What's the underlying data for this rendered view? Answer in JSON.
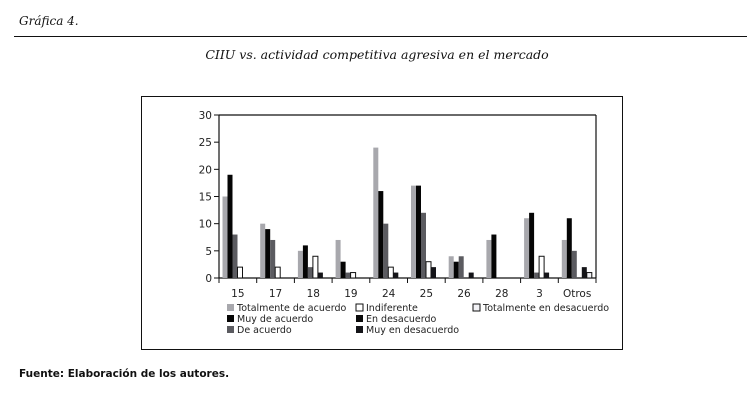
{
  "figure_label": "Gráfica 4.",
  "source": "Fuente: Elaboración de los autores.",
  "chart_data": {
    "type": "bar",
    "title": "CIIU vs. actividad competitiva agresiva en el mercado",
    "xlabel": "",
    "ylabel": "",
    "ylim": [
      0,
      30
    ],
    "yticks": [
      0,
      5,
      10,
      15,
      20,
      25,
      30
    ],
    "grid": false,
    "legend_position": "bottom",
    "categories": [
      "15",
      "17",
      "18",
      "19",
      "24",
      "25",
      "26",
      "28",
      "3",
      "Otros"
    ],
    "series": [
      {
        "name": "Totalmente de acuerdo",
        "color": "#a8a8ad",
        "values": [
          15,
          10,
          5,
          7,
          24,
          17,
          4,
          7,
          11,
          7
        ]
      },
      {
        "name": "Muy de acuerdo",
        "color": "#050505",
        "values": [
          19,
          9,
          6,
          3,
          16,
          17,
          3,
          8,
          12,
          11
        ]
      },
      {
        "name": "De acuerdo",
        "color": "#5b5b60",
        "values": [
          8,
          7,
          2,
          1,
          10,
          12,
          4,
          0,
          1,
          5
        ]
      },
      {
        "name": "Indiferente",
        "color": "#ffffff",
        "values": [
          2,
          2,
          4,
          1,
          2,
          3,
          0,
          0,
          4,
          0
        ]
      },
      {
        "name": "En desacuerdo",
        "color": "#0a0a0a",
        "values": [
          0,
          0,
          0,
          0,
          0,
          0,
          0,
          0,
          0,
          0
        ]
      },
      {
        "name": "Muy en desacuerdo",
        "color": "#141418",
        "values": [
          0,
          0,
          1,
          0,
          1,
          2,
          1,
          0,
          1,
          2
        ]
      },
      {
        "name": "Totalmente en desacuerdo",
        "color": "#f2f2f6",
        "values": [
          0,
          0,
          0,
          0,
          0,
          0,
          0,
          0,
          0,
          1
        ]
      }
    ]
  }
}
